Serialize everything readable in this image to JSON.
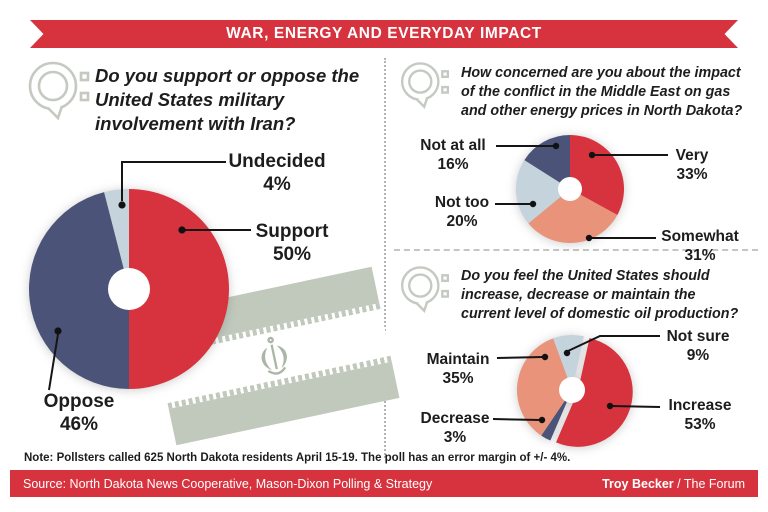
{
  "header": {
    "title": "WAR, ENERGY AND EVERYDAY IMPACT"
  },
  "palette": {
    "accent_red": "#d7333e",
    "navy": "#4b5478",
    "light_blue": "#c5d3dd",
    "salmon": "#e8937a",
    "flag_sage": "#c0c9bb",
    "icon_gray": "#c4c9c1",
    "text": "#1d1d1d"
  },
  "questions": [
    {
      "id": "iran",
      "lines": [
        "Do you support or oppose the",
        "United States military",
        "involvement with Iran?"
      ]
    },
    {
      "id": "gas-prices",
      "lines": [
        "How concerned are you about the impact",
        "of the conflict in the Middle East on gas",
        "and other energy prices in North Dakota?"
      ]
    },
    {
      "id": "oil-production",
      "lines": [
        "Do you feel the United States should",
        "increase, decrease or maintain the",
        "current level of domestic oil production?"
      ]
    }
  ],
  "chart_data": [
    {
      "type": "pie",
      "title": "Do you support or oppose the United States military involvement with Iran?",
      "start_angle": 0,
      "slices": [
        {
          "label": "Support",
          "value": 50,
          "pct": "50%",
          "color": "#d7333e"
        },
        {
          "label": "Oppose",
          "value": 46,
          "pct": "46%",
          "color": "#4b5478"
        },
        {
          "label": "Undecided",
          "value": 4,
          "pct": "4%",
          "color": "#c5d3dd"
        }
      ]
    },
    {
      "type": "pie",
      "title": "How concerned are you about the impact of the conflict in the Middle East on gas and other energy prices in North Dakota?",
      "start_angle": 0,
      "slices": [
        {
          "label": "Very",
          "value": 33,
          "pct": "33%",
          "color": "#d7333e"
        },
        {
          "label": "Somewhat",
          "value": 31,
          "pct": "31%",
          "color": "#e8937a"
        },
        {
          "label": "Not too",
          "value": 20,
          "pct": "20%",
          "color": "#c5d3dd"
        },
        {
          "label": "Not at all",
          "value": 16,
          "pct": "16%",
          "color": "#4b5478"
        }
      ]
    },
    {
      "type": "pie",
      "title": "Do you feel the United States should increase, decrease or maintain the current level of domestic oil production?",
      "start_angle": 12.4,
      "slices": [
        {
          "label": "Increase",
          "value": 53,
          "pct": "53%",
          "color": "#d7333e",
          "explode": true
        },
        {
          "label": "Decrease",
          "value": 3,
          "pct": "3%",
          "color": "#4b5478"
        },
        {
          "label": "Maintain",
          "value": 35,
          "pct": "35%",
          "color": "#e8937a"
        },
        {
          "label": "Not sure",
          "value": 9,
          "pct": "9%",
          "color": "#c5d3dd"
        }
      ]
    }
  ],
  "note": "Note: Pollsters called 625 North Dakota residents April 15-19. The poll has an error margin of +/- 4%.",
  "footer": {
    "source": "Source: North Dakota News Cooperative, Mason-Dixon Polling & Strategy",
    "credit_name": "Troy Becker",
    "credit_rest": " / The Forum"
  }
}
